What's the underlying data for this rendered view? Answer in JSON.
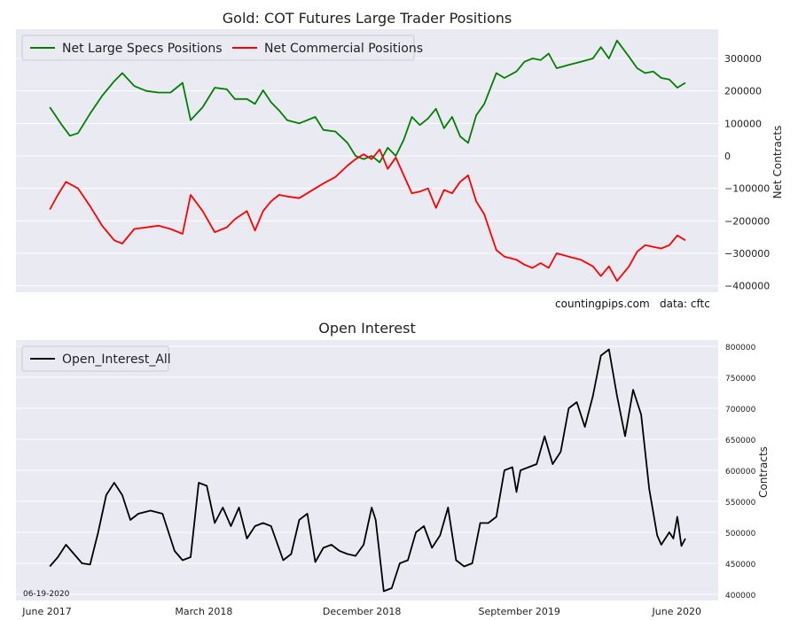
{
  "chart_data": [
    {
      "type": "line",
      "title": "Gold: COT Futures Large Trader Positions",
      "ylabel": "Net Contracts",
      "ylim": [
        -420000,
        390000
      ],
      "yticks": [
        -400000,
        -300000,
        -200000,
        -100000,
        0,
        100000,
        200000,
        300000
      ],
      "ytick_labels": [
        "−400000",
        "−300000",
        "−200000",
        "−100000",
        "0",
        "100000",
        "200000",
        "300000"
      ],
      "x_range": [
        "2017-06-01",
        "2020-06-16"
      ],
      "legend": "top-left",
      "grid": true,
      "notes": [
        "countingpips.com",
        "data: cftc"
      ],
      "series": [
        {
          "name": "Net Large Specs Positions",
          "color": "#008000",
          "points": [
            [
              "2017-06-06",
              150000
            ],
            [
              "2017-06-27",
              95000
            ],
            [
              "2017-07-11",
              62000
            ],
            [
              "2017-07-25",
              70000
            ],
            [
              "2017-08-15",
              130000
            ],
            [
              "2017-09-05",
              185000
            ],
            [
              "2017-09-26",
              230000
            ],
            [
              "2017-10-10",
              255000
            ],
            [
              "2017-10-31",
              215000
            ],
            [
              "2017-11-21",
              200000
            ],
            [
              "2017-12-12",
              195000
            ],
            [
              "2018-01-02",
              195000
            ],
            [
              "2018-01-23",
              225000
            ],
            [
              "2018-02-06",
              110000
            ],
            [
              "2018-02-27",
              150000
            ],
            [
              "2018-03-20",
              210000
            ],
            [
              "2018-04-10",
              205000
            ],
            [
              "2018-04-24",
              175000
            ],
            [
              "2018-05-15",
              175000
            ],
            [
              "2018-05-29",
              160000
            ],
            [
              "2018-06-12",
              202000
            ],
            [
              "2018-06-26",
              165000
            ],
            [
              "2018-07-10",
              140000
            ],
            [
              "2018-07-24",
              110000
            ],
            [
              "2018-08-14",
              100000
            ],
            [
              "2018-09-11",
              120000
            ],
            [
              "2018-09-25",
              80000
            ],
            [
              "2018-10-16",
              75000
            ],
            [
              "2018-11-06",
              40000
            ],
            [
              "2018-11-20",
              0
            ],
            [
              "2018-12-04",
              -10000
            ],
            [
              "2018-12-18",
              0
            ],
            [
              "2019-01-01",
              -20000
            ],
            [
              "2019-01-15",
              25000
            ],
            [
              "2019-01-29",
              0
            ],
            [
              "2019-02-12",
              50000
            ],
            [
              "2019-02-26",
              120000
            ],
            [
              "2019-03-12",
              95000
            ],
            [
              "2019-03-26",
              115000
            ],
            [
              "2019-04-09",
              145000
            ],
            [
              "2019-04-23",
              85000
            ],
            [
              "2019-05-07",
              120000
            ],
            [
              "2019-05-21",
              60000
            ],
            [
              "2019-06-04",
              40000
            ],
            [
              "2019-06-18",
              125000
            ],
            [
              "2019-07-02",
              160000
            ],
            [
              "2019-07-23",
              255000
            ],
            [
              "2019-08-06",
              240000
            ],
            [
              "2019-08-27",
              260000
            ],
            [
              "2019-09-10",
              290000
            ],
            [
              "2019-09-24",
              300000
            ],
            [
              "2019-10-08",
              295000
            ],
            [
              "2019-10-22",
              315000
            ],
            [
              "2019-11-05",
              270000
            ],
            [
              "2019-11-26",
              280000
            ],
            [
              "2019-12-17",
              290000
            ],
            [
              "2020-01-07",
              300000
            ],
            [
              "2020-01-21",
              335000
            ],
            [
              "2020-02-04",
              300000
            ],
            [
              "2020-02-18",
              355000
            ],
            [
              "2020-03-10",
              305000
            ],
            [
              "2020-03-24",
              270000
            ],
            [
              "2020-04-07",
              255000
            ],
            [
              "2020-04-21",
              260000
            ],
            [
              "2020-05-05",
              240000
            ],
            [
              "2020-05-19",
              235000
            ],
            [
              "2020-06-02",
              210000
            ],
            [
              "2020-06-16",
              225000
            ]
          ]
        },
        {
          "name": "Net Commercial Positions",
          "color": "#ff0000",
          "points": [
            [
              "2017-06-06",
              -165000
            ],
            [
              "2017-06-20",
              -120000
            ],
            [
              "2017-07-04",
              -80000
            ],
            [
              "2017-07-25",
              -100000
            ],
            [
              "2017-08-15",
              -155000
            ],
            [
              "2017-09-05",
              -215000
            ],
            [
              "2017-09-26",
              -260000
            ],
            [
              "2017-10-10",
              -270000
            ],
            [
              "2017-10-31",
              -225000
            ],
            [
              "2017-11-21",
              -220000
            ],
            [
              "2017-12-12",
              -215000
            ],
            [
              "2018-01-02",
              -225000
            ],
            [
              "2018-01-23",
              -240000
            ],
            [
              "2018-02-06",
              -120000
            ],
            [
              "2018-02-27",
              -170000
            ],
            [
              "2018-03-20",
              -235000
            ],
            [
              "2018-04-10",
              -220000
            ],
            [
              "2018-04-24",
              -195000
            ],
            [
              "2018-05-15",
              -170000
            ],
            [
              "2018-05-29",
              -230000
            ],
            [
              "2018-06-12",
              -170000
            ],
            [
              "2018-06-26",
              -140000
            ],
            [
              "2018-07-10",
              -120000
            ],
            [
              "2018-07-24",
              -125000
            ],
            [
              "2018-08-14",
              -130000
            ],
            [
              "2018-09-11",
              -100000
            ],
            [
              "2018-09-25",
              -85000
            ],
            [
              "2018-10-16",
              -65000
            ],
            [
              "2018-11-06",
              -30000
            ],
            [
              "2018-11-20",
              -10000
            ],
            [
              "2018-12-04",
              5000
            ],
            [
              "2018-12-18",
              -10000
            ],
            [
              "2019-01-01",
              20000
            ],
            [
              "2019-01-15",
              -40000
            ],
            [
              "2019-01-29",
              -5000
            ],
            [
              "2019-02-12",
              -60000
            ],
            [
              "2019-02-26",
              -115000
            ],
            [
              "2019-03-12",
              -110000
            ],
            [
              "2019-03-26",
              -100000
            ],
            [
              "2019-04-09",
              -160000
            ],
            [
              "2019-04-23",
              -105000
            ],
            [
              "2019-05-07",
              -115000
            ],
            [
              "2019-05-21",
              -80000
            ],
            [
              "2019-06-04",
              -60000
            ],
            [
              "2019-06-18",
              -140000
            ],
            [
              "2019-07-02",
              -180000
            ],
            [
              "2019-07-23",
              -290000
            ],
            [
              "2019-08-06",
              -310000
            ],
            [
              "2019-08-27",
              -320000
            ],
            [
              "2019-09-10",
              -335000
            ],
            [
              "2019-09-24",
              -345000
            ],
            [
              "2019-10-08",
              -330000
            ],
            [
              "2019-10-22",
              -345000
            ],
            [
              "2019-11-05",
              -300000
            ],
            [
              "2019-11-26",
              -310000
            ],
            [
              "2019-12-17",
              -320000
            ],
            [
              "2020-01-07",
              -340000
            ],
            [
              "2020-01-21",
              -370000
            ],
            [
              "2020-02-04",
              -340000
            ],
            [
              "2020-02-18",
              -385000
            ],
            [
              "2020-03-10",
              -340000
            ],
            [
              "2020-03-24",
              -295000
            ],
            [
              "2020-04-07",
              -275000
            ],
            [
              "2020-04-21",
              -280000
            ],
            [
              "2020-05-05",
              -285000
            ],
            [
              "2020-05-19",
              -275000
            ],
            [
              "2020-06-02",
              -245000
            ],
            [
              "2020-06-16",
              -260000
            ]
          ]
        }
      ]
    },
    {
      "type": "line",
      "title": "Open Interest",
      "ylabel": "Contracts",
      "ylim": [
        390000,
        810000
      ],
      "yticks": [
        400000,
        450000,
        500000,
        550000,
        600000,
        650000,
        700000,
        750000,
        800000
      ],
      "ytick_labels": [
        "400000",
        "450000",
        "500000",
        "550000",
        "600000",
        "650000",
        "700000",
        "750000",
        "800000"
      ],
      "x_range": [
        "2017-06-01",
        "2020-06-16"
      ],
      "xtick_labels": [
        {
          "date": "2017-06-01",
          "label": "June 2017"
        },
        {
          "date": "2018-03-01",
          "label": "March 2018"
        },
        {
          "date": "2018-12-01",
          "label": "December 2018"
        },
        {
          "date": "2019-09-01",
          "label": "September 2019"
        },
        {
          "date": "2020-06-01",
          "label": "June 2020"
        }
      ],
      "legend": "top-left",
      "grid": true,
      "date_note": "06-19-2020",
      "series": [
        {
          "name": "Open_Interest_All",
          "color": "#000000",
          "points": [
            [
              "2017-06-06",
              445000
            ],
            [
              "2017-06-20",
              460000
            ],
            [
              "2017-07-04",
              480000
            ],
            [
              "2017-07-18",
              465000
            ],
            [
              "2017-08-01",
              450000
            ],
            [
              "2017-08-15",
              448000
            ],
            [
              "2017-08-29",
              500000
            ],
            [
              "2017-09-12",
              560000
            ],
            [
              "2017-09-26",
              580000
            ],
            [
              "2017-10-10",
              560000
            ],
            [
              "2017-10-24",
              520000
            ],
            [
              "2017-11-07",
              530000
            ],
            [
              "2017-11-28",
              535000
            ],
            [
              "2017-12-19",
              530000
            ],
            [
              "2018-01-09",
              470000
            ],
            [
              "2018-01-23",
              455000
            ],
            [
              "2018-02-06",
              460000
            ],
            [
              "2018-02-20",
              580000
            ],
            [
              "2018-03-06",
              575000
            ],
            [
              "2018-03-20",
              515000
            ],
            [
              "2018-04-03",
              540000
            ],
            [
              "2018-04-17",
              510000
            ],
            [
              "2018-05-01",
              540000
            ],
            [
              "2018-05-15",
              490000
            ],
            [
              "2018-05-29",
              510000
            ],
            [
              "2018-06-12",
              515000
            ],
            [
              "2018-06-26",
              510000
            ],
            [
              "2018-07-17",
              455000
            ],
            [
              "2018-07-31",
              465000
            ],
            [
              "2018-08-14",
              520000
            ],
            [
              "2018-08-28",
              530000
            ],
            [
              "2018-09-11",
              452000
            ],
            [
              "2018-09-25",
              475000
            ],
            [
              "2018-10-09",
              480000
            ],
            [
              "2018-10-23",
              470000
            ],
            [
              "2018-11-06",
              465000
            ],
            [
              "2018-11-20",
              462000
            ],
            [
              "2018-12-04",
              480000
            ],
            [
              "2018-12-18",
              540000
            ],
            [
              "2018-12-25",
              520000
            ],
            [
              "2019-01-08",
              405000
            ],
            [
              "2019-01-22",
              410000
            ],
            [
              "2019-02-05",
              450000
            ],
            [
              "2019-02-19",
              455000
            ],
            [
              "2019-03-05",
              500000
            ],
            [
              "2019-03-19",
              510000
            ],
            [
              "2019-04-02",
              475000
            ],
            [
              "2019-04-16",
              495000
            ],
            [
              "2019-04-30",
              540000
            ],
            [
              "2019-05-14",
              455000
            ],
            [
              "2019-05-28",
              445000
            ],
            [
              "2019-06-11",
              450000
            ],
            [
              "2019-06-25",
              515000
            ],
            [
              "2019-07-09",
              515000
            ],
            [
              "2019-07-23",
              525000
            ],
            [
              "2019-08-06",
              600000
            ],
            [
              "2019-08-20",
              605000
            ],
            [
              "2019-08-27",
              565000
            ],
            [
              "2019-09-03",
              600000
            ],
            [
              "2019-09-17",
              605000
            ],
            [
              "2019-10-01",
              610000
            ],
            [
              "2019-10-15",
              655000
            ],
            [
              "2019-10-29",
              610000
            ],
            [
              "2019-11-12",
              630000
            ],
            [
              "2019-11-26",
              700000
            ],
            [
              "2019-12-10",
              710000
            ],
            [
              "2019-12-24",
              670000
            ],
            [
              "2020-01-07",
              720000
            ],
            [
              "2020-01-21",
              785000
            ],
            [
              "2020-02-04",
              795000
            ],
            [
              "2020-02-18",
              720000
            ],
            [
              "2020-03-03",
              655000
            ],
            [
              "2020-03-17",
              730000
            ],
            [
              "2020-03-31",
              690000
            ],
            [
              "2020-04-14",
              570000
            ],
            [
              "2020-04-28",
              495000
            ],
            [
              "2020-05-05",
              480000
            ],
            [
              "2020-05-12",
              490000
            ],
            [
              "2020-05-19",
              500000
            ],
            [
              "2020-05-26",
              490000
            ],
            [
              "2020-06-02",
              525000
            ],
            [
              "2020-06-09",
              478000
            ],
            [
              "2020-06-16",
              490000
            ]
          ]
        }
      ]
    }
  ]
}
